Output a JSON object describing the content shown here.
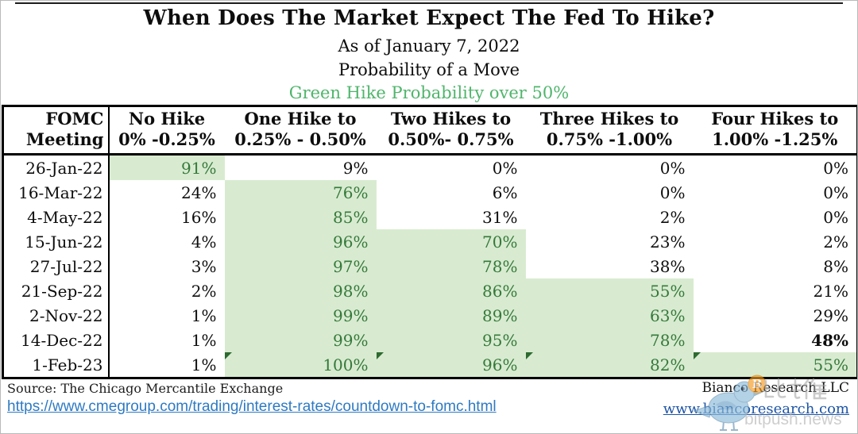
{
  "header": {
    "title": "When Does The Market Expect The Fed To Hike?",
    "subtitles": [
      "As of January 7, 2022",
      "Probability of a Move",
      "Green Hike Probability over 50%"
    ]
  },
  "table": {
    "columns": [
      {
        "line1": "FOMC",
        "line2": "Meeting"
      },
      {
        "line1": "No Hike",
        "line2": "0% -0.25%"
      },
      {
        "line1": "One Hike to",
        "line2": "0.25% - 0.50%"
      },
      {
        "line1": "Two Hikes to",
        "line2": "0.50%- 0.75%"
      },
      {
        "line1": "Three Hikes to",
        "line2": "0.75% -1.00%"
      },
      {
        "line1": "Four Hikes to",
        "line2": "1.00% -1.25%"
      }
    ],
    "rows": [
      {
        "date": "26-Jan-22",
        "cells": [
          {
            "v": "91%",
            "g": true
          },
          {
            "v": "9%"
          },
          {
            "v": "0%"
          },
          {
            "v": "0%"
          },
          {
            "v": "0%"
          }
        ]
      },
      {
        "date": "16-Mar-22",
        "cells": [
          {
            "v": "24%"
          },
          {
            "v": "76%",
            "g": true
          },
          {
            "v": "6%"
          },
          {
            "v": "0%"
          },
          {
            "v": "0%"
          }
        ]
      },
      {
        "date": "4-May-22",
        "cells": [
          {
            "v": "16%"
          },
          {
            "v": "85%",
            "g": true
          },
          {
            "v": "31%"
          },
          {
            "v": "2%"
          },
          {
            "v": "0%"
          }
        ]
      },
      {
        "date": "15-Jun-22",
        "cells": [
          {
            "v": "4%"
          },
          {
            "v": "96%",
            "g": true
          },
          {
            "v": "70%",
            "g": true
          },
          {
            "v": "23%"
          },
          {
            "v": "2%"
          }
        ]
      },
      {
        "date": "27-Jul-22",
        "cells": [
          {
            "v": "3%"
          },
          {
            "v": "97%",
            "g": true
          },
          {
            "v": "78%",
            "g": true
          },
          {
            "v": "38%"
          },
          {
            "v": "8%"
          }
        ]
      },
      {
        "date": "21-Sep-22",
        "cells": [
          {
            "v": "2%"
          },
          {
            "v": "98%",
            "g": true
          },
          {
            "v": "86%",
            "g": true
          },
          {
            "v": "55%",
            "g": true
          },
          {
            "v": "21%"
          }
        ]
      },
      {
        "date": "2-Nov-22",
        "cells": [
          {
            "v": "1%"
          },
          {
            "v": "99%",
            "g": true
          },
          {
            "v": "89%",
            "g": true
          },
          {
            "v": "63%",
            "g": true
          },
          {
            "v": "29%"
          }
        ]
      },
      {
        "date": "14-Dec-22",
        "cells": [
          {
            "v": "1%"
          },
          {
            "v": "99%",
            "g": true
          },
          {
            "v": "95%",
            "g": true
          },
          {
            "v": "78%",
            "g": true
          },
          {
            "v": "48%",
            "b": true
          }
        ]
      },
      {
        "date": "1-Feb-23",
        "cells": [
          {
            "v": "1%"
          },
          {
            "v": "100%",
            "g": true,
            "f": true
          },
          {
            "v": "96%",
            "g": true,
            "f": true
          },
          {
            "v": "82%",
            "g": true,
            "f": true
          },
          {
            "v": "55%",
            "g": true,
            "f": true
          }
        ]
      }
    ]
  },
  "chart_data": {
    "type": "table",
    "title": "When Does The Market Expect The Fed To Hike?",
    "subtitle": [
      "As of January 7, 2022",
      "Probability of a Move",
      "Green Hike Probability over 50%"
    ],
    "columns": [
      "FOMC Meeting",
      "No Hike 0% -0.25%",
      "One Hike to 0.25% - 0.50%",
      "Two Hikes to 0.50%- 0.75%",
      "Three Hikes to 0.75% -1.00%",
      "Four Hikes to 1.00% -1.25%"
    ],
    "rows": [
      [
        "26-Jan-22",
        91,
        9,
        0,
        0,
        0
      ],
      [
        "16-Mar-22",
        24,
        76,
        6,
        0,
        0
      ],
      [
        "4-May-22",
        16,
        85,
        31,
        2,
        0
      ],
      [
        "15-Jun-22",
        4,
        96,
        70,
        23,
        2
      ],
      [
        "27-Jul-22",
        3,
        97,
        78,
        38,
        8
      ],
      [
        "21-Sep-22",
        2,
        98,
        86,
        55,
        21
      ],
      [
        "2-Nov-22",
        1,
        99,
        89,
        63,
        29
      ],
      [
        "14-Dec-22",
        1,
        99,
        95,
        78,
        48
      ],
      [
        "1-Feb-23",
        1,
        100,
        96,
        82,
        55
      ]
    ],
    "units": "percent probability",
    "highlight_rule": "cells with hike probability over 50% are shaded green"
  },
  "footer": {
    "source": "Source: The Chicago Mercantile Exchange",
    "source_link": "https://www.cmegroup.com/trading/interest-rates/countdown-to-fomc.html",
    "company": "Bianco Research LLC",
    "company_link": "www.biancoresearch.com"
  },
  "watermark": {
    "cn": "比推",
    "en": "bitpush.news",
    "coin_letter": "B"
  },
  "colors": {
    "highlight_bg": "#d8ebd0",
    "highlight_text": "#35793b",
    "green_title": "#4fb56b",
    "source_link_blue": "#2e7ac2",
    "company_link_blue": "#1d55a6",
    "coin_orange": "#f79b1e",
    "bird_blue": "#8cbbda",
    "flag_green": "#2d6a30"
  }
}
